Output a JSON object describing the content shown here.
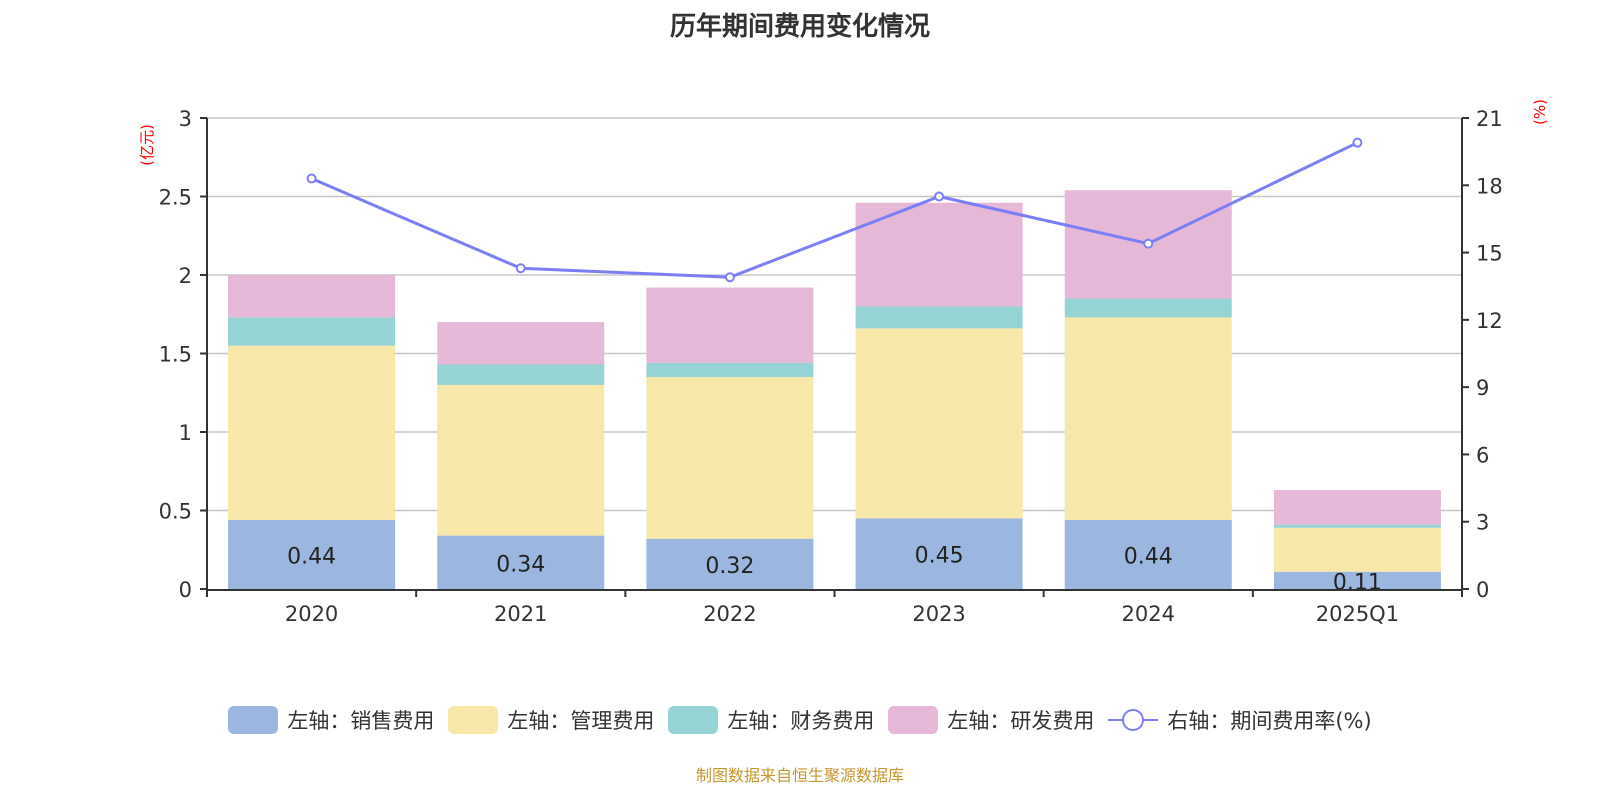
{
  "title": "历年期间费用变化情况",
  "source": "制图数据来自恒生聚源数据库",
  "chart_data": {
    "type": "bar",
    "title": "历年期间费用变化情况",
    "categories": [
      "2020",
      "2021",
      "2022",
      "2023",
      "2024",
      "2025Q1"
    ],
    "left_axis": {
      "unit": "(亿元)",
      "ylim": [
        0,
        3
      ],
      "ticks": [
        "0",
        "0.5",
        "1",
        "1.5",
        "2",
        "2.5",
        "3"
      ]
    },
    "right_axis": {
      "unit": "(%)",
      "ylim": [
        0,
        21
      ],
      "ticks": [
        "0",
        "3",
        "6",
        "9",
        "12",
        "15",
        "18",
        "21"
      ]
    },
    "grid": true,
    "legend_position": "bottom",
    "series": [
      {
        "name": "左轴：销售费用",
        "type": "bar",
        "stack": true,
        "color": "#9bb7e0",
        "values": [
          0.44,
          0.34,
          0.32,
          0.45,
          0.44,
          0.11
        ],
        "labels": [
          "0.44",
          "0.34",
          "0.32",
          "0.45",
          "0.44",
          "0.11"
        ]
      },
      {
        "name": "左轴：管理费用",
        "type": "bar",
        "stack": true,
        "color": "#f7e7a9",
        "values": [
          1.11,
          0.96,
          1.03,
          1.21,
          1.29,
          0.28
        ]
      },
      {
        "name": "左轴：财务费用",
        "type": "bar",
        "stack": true,
        "color": "#96d3d4",
        "values": [
          0.18,
          0.13,
          0.09,
          0.14,
          0.12,
          0.02
        ]
      },
      {
        "name": "左轴：研发费用",
        "type": "bar",
        "stack": true,
        "color": "#e6b8d8",
        "values": [
          0.27,
          0.27,
          0.48,
          0.66,
          0.69,
          0.22
        ]
      },
      {
        "name": "右轴：期间费用率(%)",
        "type": "line",
        "axis": "right",
        "color": "#7b7ef5",
        "values": [
          18.3,
          14.3,
          13.9,
          17.5,
          15.4,
          19.9
        ]
      }
    ]
  }
}
